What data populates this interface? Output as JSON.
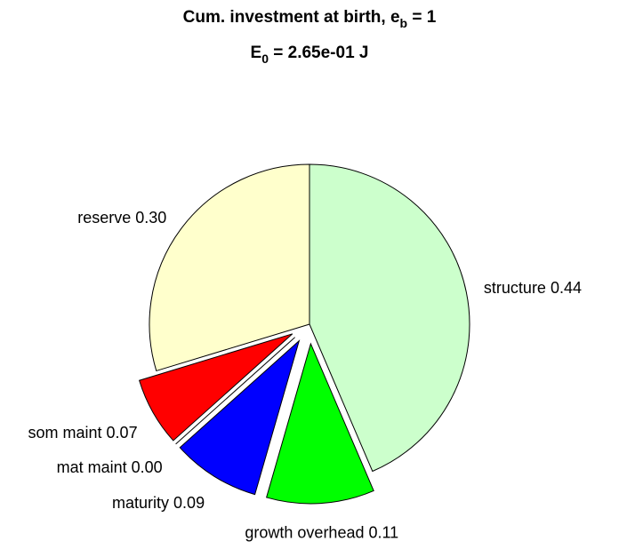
{
  "chart_data": {
    "type": "pie",
    "title": {
      "text": "Cum. investment at birth, e",
      "sub": "b",
      "tail": " = 1"
    },
    "subtitle": {
      "text": "E",
      "sub": "0",
      "tail": " = 2.65e-01 J"
    },
    "categories": [
      "structure",
      "growth overhead",
      "maturity",
      "mat maint",
      "som maint",
      "reserve"
    ],
    "values": [
      0.44,
      0.11,
      0.09,
      0,
      0.07,
      0.3
    ],
    "value_labels": [
      "0.44",
      "0.11",
      "0.09",
      "0.00",
      "0.07",
      "0.30"
    ],
    "colors": [
      "#ccffcc",
      "#00ff00",
      "#0000ff",
      "#ff00ff",
      "#ff0000",
      "#ffffcc"
    ],
    "explode": [
      false,
      true,
      true,
      true,
      true,
      false
    ]
  }
}
